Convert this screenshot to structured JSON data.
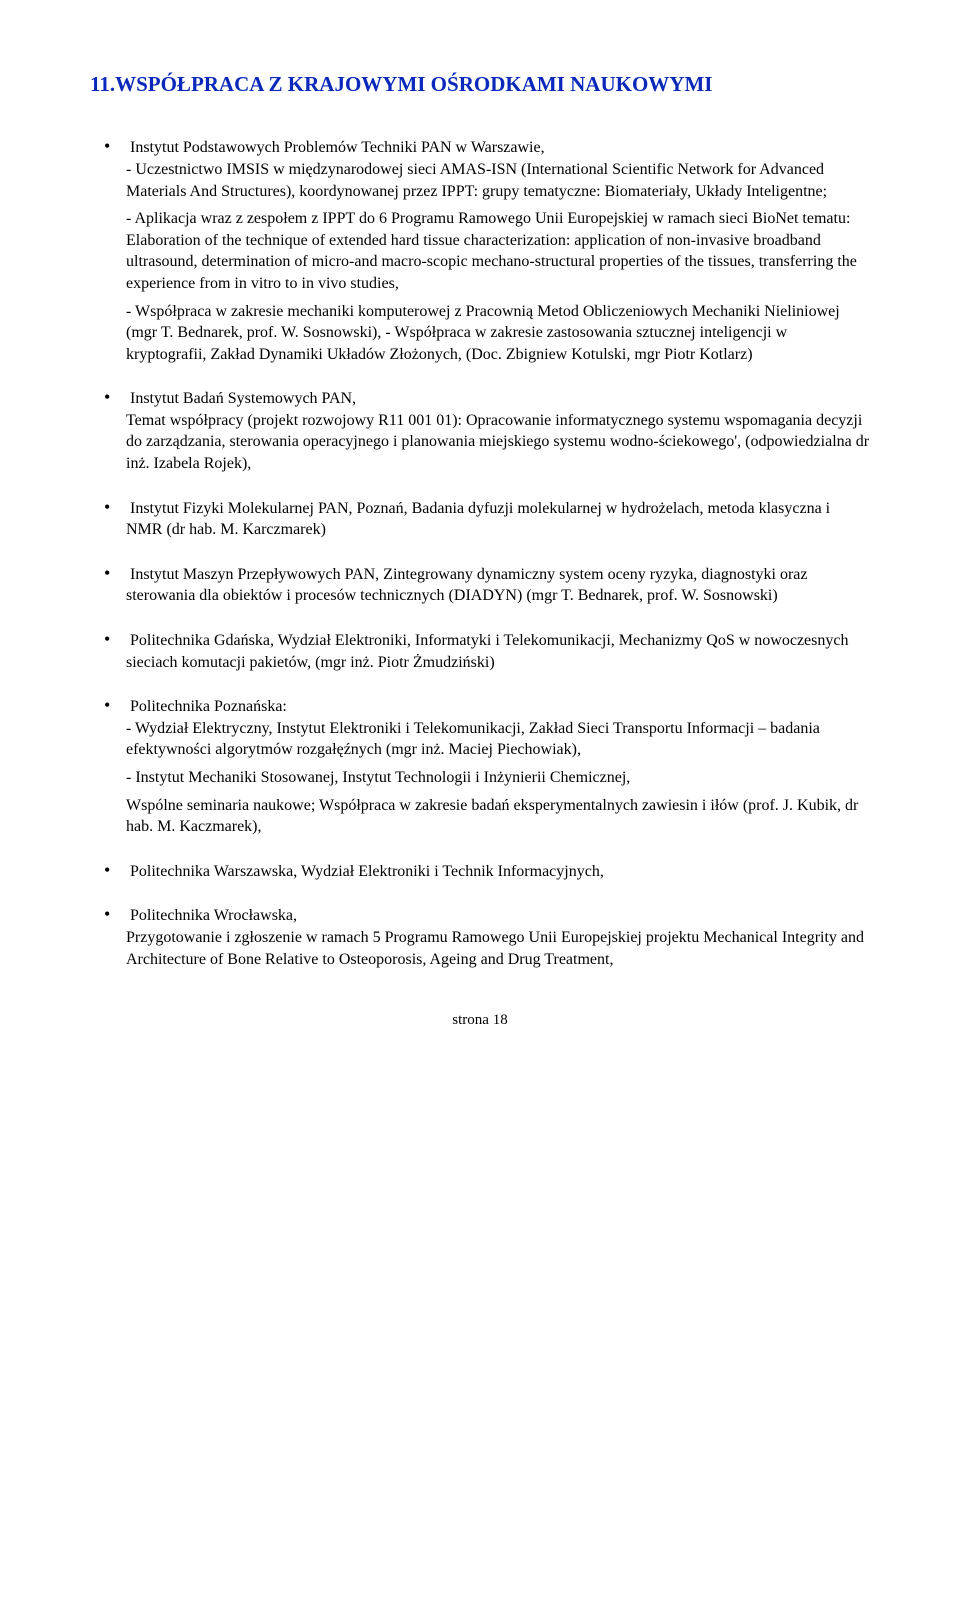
{
  "title": "11.WSPÓŁPRACA Z KRAJOWYMI OŚRODKAMI NAUKOWYMI",
  "items": [
    {
      "lead": "Instytut Podstawowych Problemów Techniki  PAN w Warszawie,",
      "paras": [
        "- Uczestnictwo IMSIS w międzynarodowej sieci AMAS-ISN (International Scientific Network for Advanced Materials And Structures), koordynowanej przez IPPT: grupy tematyczne: Biomateriały, Układy Inteligentne;",
        "- Aplikacja wraz z zespołem z IPPT do 6 Programu Ramowego Unii Europejskiej w ramach sieci BioNet tematu: Elaboration of the technique of extended hard tissue characterization: application of non-invasive broadband ultrasound, determination of micro-and macro-scopic mechano-structural properties of the tissues, transferring the experience from in vitro to in vivo studies,",
        "- Współpraca w zakresie mechaniki komputerowej z Pracownią Metod Obliczeniowych Mechaniki Nieliniowej (mgr T. Bednarek, prof. W. Sosnowski), - Współpraca w zakresie zastosowania sztucznej inteligencji w kryptografii, Zakład Dynamiki Układów Złożonych, (Doc. Zbigniew Kotulski, mgr Piotr Kotlarz)"
      ]
    },
    {
      "lead": "Instytut Badań Systemowych PAN,",
      "paras": [
        "Temat współpracy (projekt rozwojowy R11 001 01): Opracowanie informatycznego systemu wspomagania decyzji do zarządzania, sterowania operacyjnego i planowania miejskiego systemu wodno-ściekowego', (odpowiedzialna dr inż. Izabela Rojek),"
      ]
    },
    {
      "lead": "Instytut Fizyki Molekularnej PAN, Poznań, Badania dyfuzji molekularnej w hydrożelach, metoda klasyczna i NMR (dr hab. M. Karczmarek)",
      "paras": []
    },
    {
      "lead": "Instytut Maszyn Przepływowych PAN, Zintegrowany dynamiczny system oceny ryzyka, diagnostyki oraz sterowania dla obiektów i procesów technicznych (DIADYN) (mgr T. Bednarek, prof. W. Sosnowski)",
      "paras": []
    },
    {
      "lead": "Politechnika Gdańska, Wydział Elektroniki, Informatyki i Telekomunikacji, Mechanizmy QoS w nowoczesnych sieciach komutacji pakietów, (mgr inż. Piotr Żmudziński)",
      "paras": []
    },
    {
      "lead": "Politechnika Poznańska:",
      "paras": [
        "- Wydział Elektryczny, Instytut Elektroniki i Telekomunikacji, Zakład Sieci Transportu Informacji – badania efektywności algorytmów rozgałęźnych (mgr inż. Maciej Piechowiak),",
        "- Instytut Mechaniki Stosowanej, Instytut Technologii i Inżynierii Chemicznej,",
        "Wspólne seminaria naukowe; Współpraca w zakresie badań eksperymentalnych zawiesin i iłów (prof. J. Kubik, dr hab. M. Kaczmarek),"
      ]
    },
    {
      "lead": "Politechnika Warszawska, Wydział Elektroniki i Technik Informacyjnych,",
      "paras": []
    },
    {
      "lead": "Politechnika Wrocławska,",
      "paras": [
        "Przygotowanie i zgłoszenie w ramach 5 Programu Ramowego Unii Europejskiej projektu Mechanical Integrity and Architecture of Bone Relative to Osteoporosis, Ageing and Drug Treatment,"
      ]
    }
  ],
  "footer": "strona 18",
  "colors": {
    "title": "#0a28b9",
    "text": "#000000",
    "background": "#ffffff"
  },
  "typography": {
    "title_fontsize": 21,
    "body_fontsize": 16,
    "title_weight": "bold",
    "font_family": "Times New Roman"
  }
}
